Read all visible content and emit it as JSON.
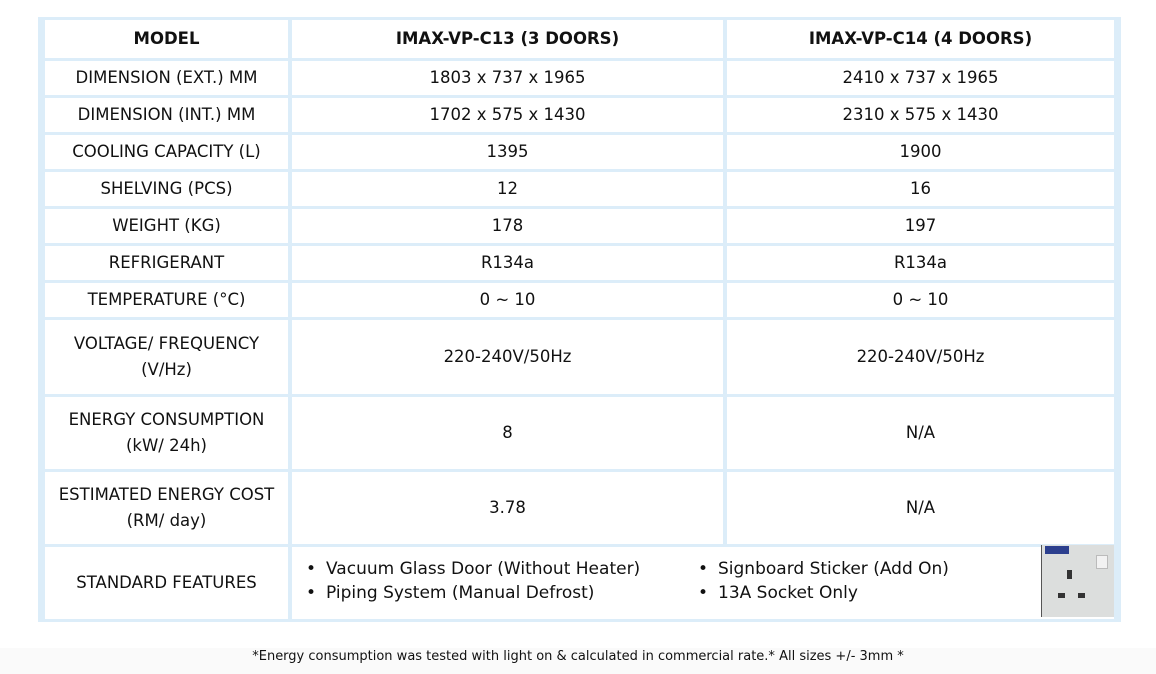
{
  "headers": [
    "MODEL",
    "IMAX-VP-C13 (3 DOORS)",
    "IMAX-VP-C14 (4 DOORS)"
  ],
  "rows": [
    {
      "label": "DIMENSION (EXT.) MM",
      "c13": "1803 x 737 x 1965",
      "c14": "2410 x 737 x 1965"
    },
    {
      "label": "DIMENSION (INT.) MM",
      "c13": "1702 x 575 x 1430",
      "c14": "2310 x 575 x 1430"
    },
    {
      "label": "COOLING CAPACITY (L)",
      "c13": "1395",
      "c14": "1900"
    },
    {
      "label": "SHELVING (PCS)",
      "c13": "12",
      "c14": "16"
    },
    {
      "label": "WEIGHT (KG)",
      "c13": "178",
      "c14": "197"
    },
    {
      "label": "REFRIGERANT",
      "c13": "R134a",
      "c14": "R134a"
    },
    {
      "label": "TEMPERATURE (°C)",
      "c13": "0 ~ 10",
      "c14": "0 ~ 10"
    },
    {
      "label": "VOLTAGE/ FREQUENCY (V/Hz)",
      "c13": "220-240V/50Hz",
      "c14": "220-240V/50Hz"
    },
    {
      "label": "ENERGY CONSUMPTION (kW/ 24h)",
      "c13": "8",
      "c14": "N/A"
    },
    {
      "label": "ESTIMATED ENERGY COST (RM/ day)",
      "c13": "3.78",
      "c14": "N/A"
    }
  ],
  "features": {
    "label": "STANDARD FEATURES",
    "items": [
      "Vacuum Glass Door (Without Heater)",
      "Piping System (Manual Defrost)",
      "Signboard Sticker (Add On)",
      "13A Socket Only"
    ]
  },
  "footnote": "*Energy consumption was tested with light on & calculated in commercial rate.* All sizes +/- 3mm *"
}
